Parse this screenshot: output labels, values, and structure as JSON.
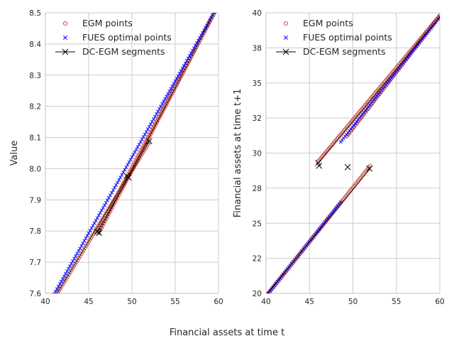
{
  "figure": {
    "shared_xlabel": "Financial assets at time t"
  },
  "legend": {
    "items": [
      {
        "label": "EGM points",
        "marker": "circle",
        "color": "#c0392b"
      },
      {
        "label": "FUES optimal points",
        "marker": "x",
        "color": "#0000ff"
      },
      {
        "label": "DC-EGM segments",
        "marker": "x-line",
        "color": "#000000"
      }
    ]
  },
  "colors": {
    "egm": "#c0392b",
    "fues": "#0000ff",
    "dcegm": "#000000",
    "grid": "#cccccc"
  },
  "chart_data": [
    {
      "type": "line",
      "title": "",
      "xlabel": "",
      "ylabel": "Value",
      "xlim": [
        40,
        60
      ],
      "ylim": [
        7.6,
        8.5
      ],
      "xticks": [
        40,
        45,
        50,
        55,
        60
      ],
      "yticks": [
        7.6,
        7.7,
        7.8,
        7.9,
        8.0,
        8.1,
        8.2,
        8.3,
        8.4,
        8.5
      ],
      "ytick_decimals": 1,
      "grid": true,
      "legend_position": "top-left",
      "egm_segments": [
        {
          "x": [
            40.0,
            52.0
          ],
          "y": [
            7.537,
            8.085
          ]
        },
        {
          "x": [
            46.0,
            60.0
          ],
          "y": [
            7.796,
            8.525
          ]
        },
        {
          "x": [
            46.2,
            60.0
          ],
          "y": [
            7.795,
            8.525
          ]
        }
      ],
      "fues_segments": [
        {
          "x": [
            40.0,
            60.0
          ],
          "y": [
            7.549,
            8.525
          ]
        }
      ],
      "dcegm_segments": [
        {
          "x": [
            40.0,
            49.5
          ],
          "y": [
            7.537,
            7.975
          ]
        },
        {
          "x": [
            46.0,
            52.0
          ],
          "y": [
            7.797,
            8.088
          ]
        },
        {
          "x": [
            46.2,
            60.0
          ],
          "y": [
            7.795,
            8.525
          ]
        }
      ],
      "dcegm_markers": [
        {
          "x": 46.0,
          "y": 7.798
        },
        {
          "x": 46.2,
          "y": 7.794
        },
        {
          "x": 49.4,
          "y": 7.977
        },
        {
          "x": 49.6,
          "y": 7.972
        },
        {
          "x": 52.0,
          "y": 8.088
        }
      ]
    },
    {
      "type": "line",
      "title": "",
      "xlabel": "",
      "ylabel": "Financial assets at time t+1",
      "xlim": [
        40,
        60
      ],
      "ylim": [
        20,
        40
      ],
      "xticks": [
        40,
        45,
        50,
        55,
        60
      ],
      "yticks": [
        20,
        22.5,
        25,
        27.5,
        30,
        32.5,
        35,
        37.5,
        40
      ],
      "yticks_labels": [
        "20",
        "22",
        "25",
        "28",
        "30",
        "32",
        "35",
        "38",
        "40"
      ],
      "grid": true,
      "legend_position": "top-left",
      "egm_segments": [
        {
          "x": [
            40.0,
            52.0
          ],
          "y": [
            19.8,
            29.1
          ]
        },
        {
          "x": [
            46.0,
            60.0
          ],
          "y": [
            29.4,
            39.8
          ]
        },
        {
          "x": [
            49.3,
            60.0
          ],
          "y": [
            31.2,
            39.8
          ]
        }
      ],
      "fues_segments": [
        {
          "x": [
            40.0,
            48.6
          ],
          "y": [
            19.8,
            26.5
          ]
        },
        {
          "x": [
            48.6,
            60.0
          ],
          "y": [
            30.8,
            39.7
          ]
        }
      ],
      "dcegm_segments": [
        {
          "x": [
            40.0,
            52.0
          ],
          "y": [
            19.9,
            28.9
          ]
        },
        {
          "x": [
            46.0,
            60.0
          ],
          "y": [
            29.3,
            39.7
          ]
        }
      ],
      "dcegm_markers": [
        {
          "x": 46.0,
          "y": 29.3
        },
        {
          "x": 46.1,
          "y": 29.1
        },
        {
          "x": 49.4,
          "y": 29.0
        },
        {
          "x": 51.9,
          "y": 28.9
        }
      ]
    }
  ]
}
